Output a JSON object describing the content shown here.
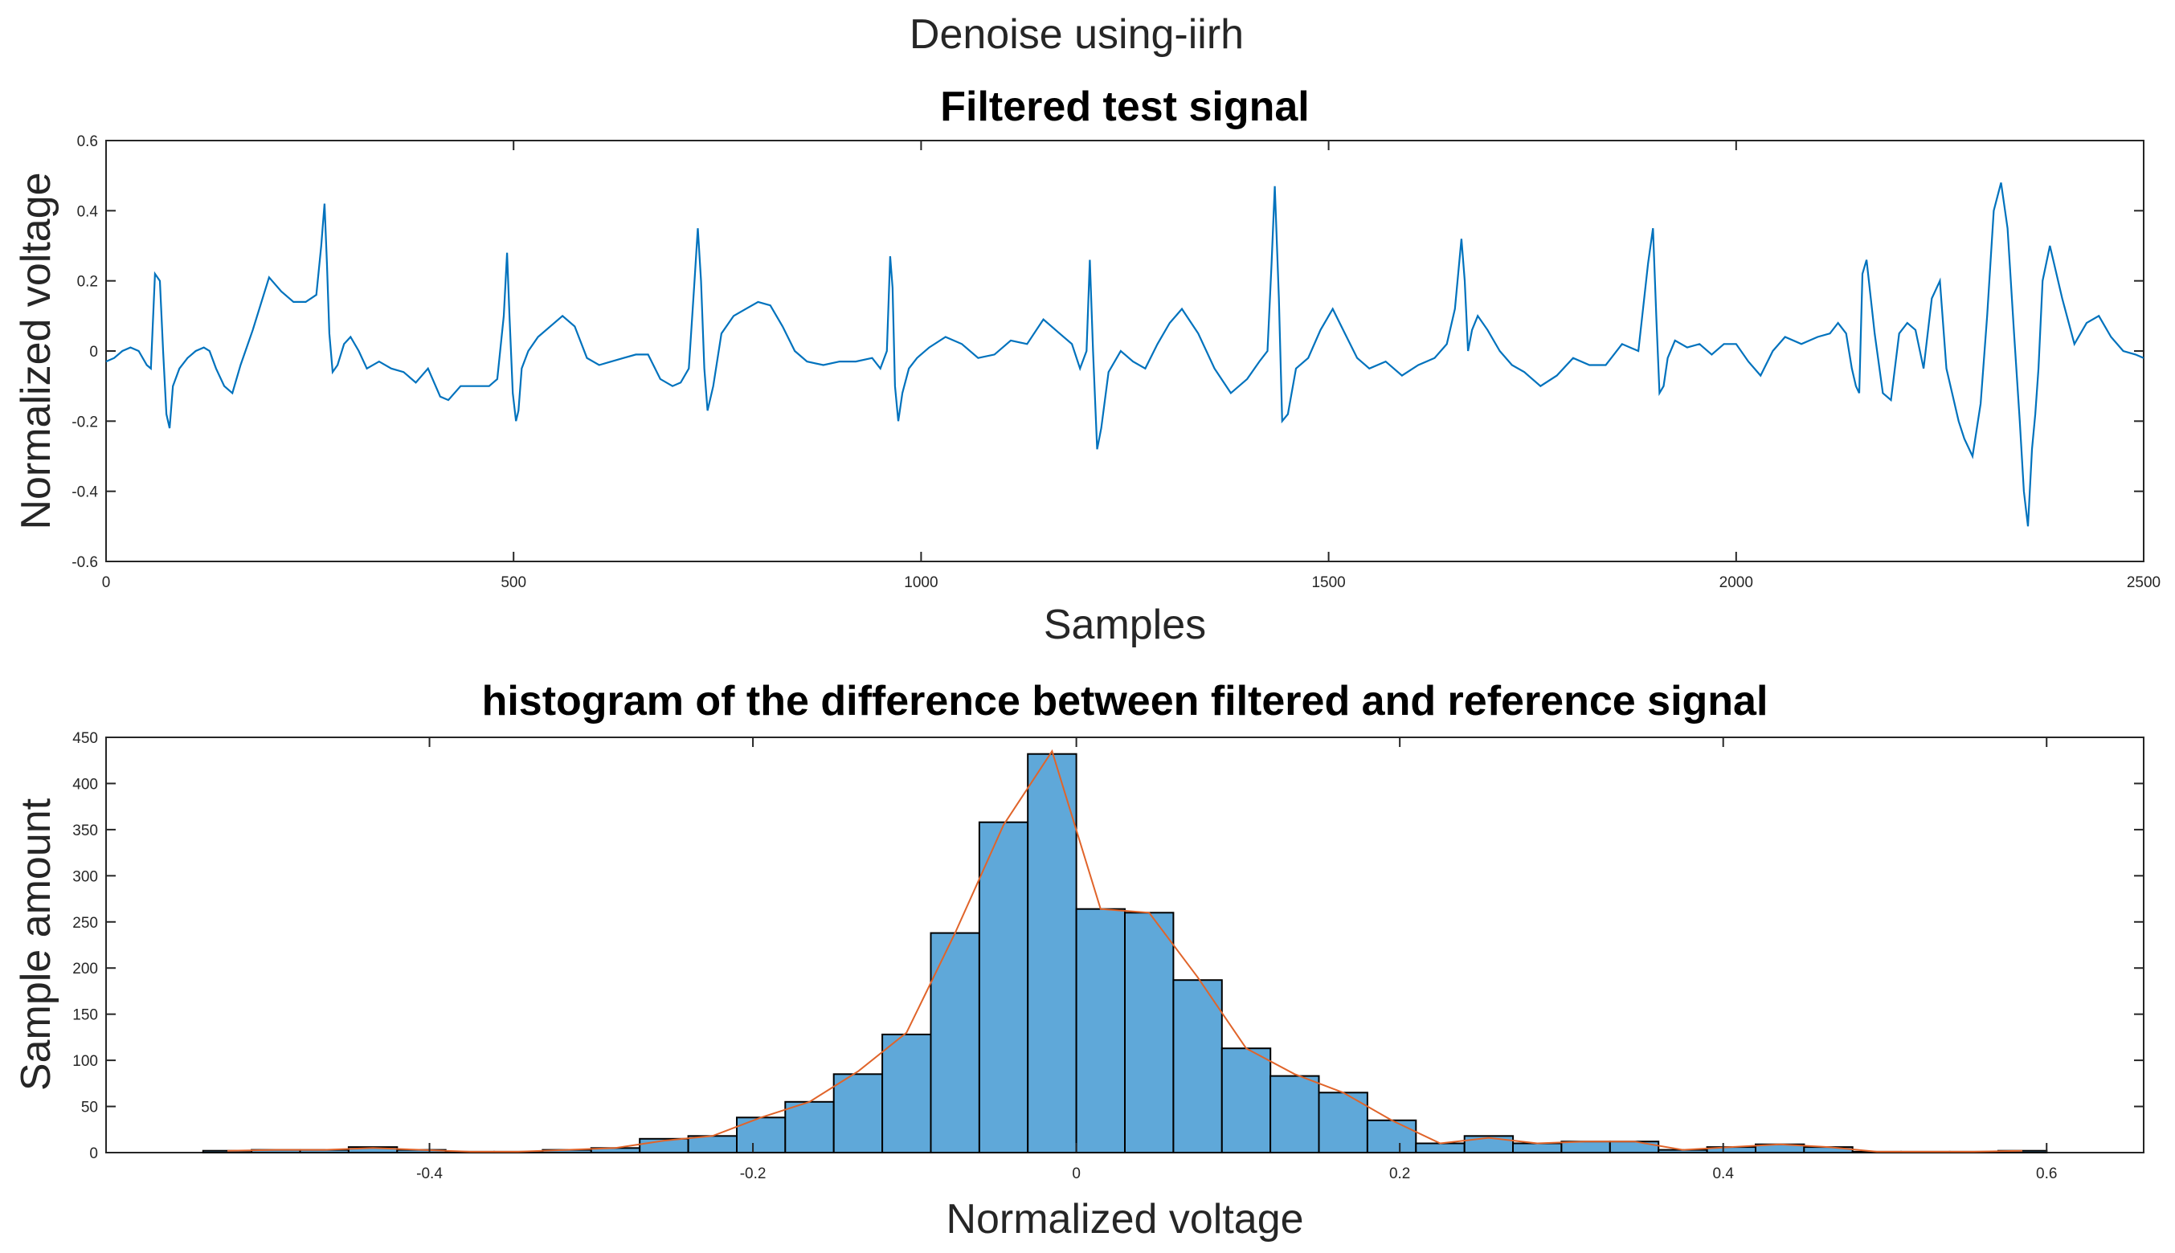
{
  "figure": {
    "suptitle": "Denoise using-iirh"
  },
  "chart_data": [
    {
      "type": "line",
      "title": "Filtered test signal",
      "xlabel": "Samples",
      "ylabel": "Normalized voltage",
      "xlim": [
        0,
        2500
      ],
      "ylim": [
        -0.6,
        0.6
      ],
      "xticks": [
        0,
        500,
        1000,
        1500,
        2000,
        2500
      ],
      "xtick_labels": [
        "0",
        "500",
        "1000",
        "1500",
        "2000",
        "2500"
      ],
      "yticks": [
        -0.6,
        -0.4,
        -0.2,
        0,
        0.2,
        0.4,
        0.6
      ],
      "ytick_labels": [
        "-0.6",
        "-0.4",
        "-0.2",
        "0",
        "0.2",
        "0.4",
        "0.6"
      ],
      "color": "#0072bd",
      "series": [
        {
          "name": "filtered signal",
          "x": [
            0,
            10,
            20,
            30,
            40,
            50,
            55,
            60,
            66,
            70,
            74,
            78,
            82,
            90,
            100,
            110,
            120,
            127,
            135,
            145,
            155,
            165,
            180,
            200,
            215,
            230,
            245,
            258,
            264,
            268,
            271,
            274,
            278,
            284,
            292,
            300,
            310,
            320,
            335,
            350,
            365,
            380,
            395,
            410,
            420,
            435,
            445,
            460,
            470,
            480,
            488,
            492,
            495,
            499,
            503,
            506,
            510,
            518,
            530,
            545,
            560,
            575,
            590,
            605,
            620,
            635,
            650,
            665,
            680,
            695,
            705,
            715,
            722,
            726,
            730,
            734,
            738,
            745,
            755,
            770,
            785,
            800,
            815,
            830,
            845,
            860,
            880,
            900,
            920,
            940,
            950,
            958,
            962,
            965,
            968,
            972,
            977,
            985,
            995,
            1010,
            1030,
            1050,
            1070,
            1090,
            1110,
            1130,
            1150,
            1170,
            1185,
            1195,
            1203,
            1207,
            1211,
            1216,
            1221,
            1230,
            1245,
            1260,
            1275,
            1290,
            1305,
            1320,
            1340,
            1360,
            1380,
            1400,
            1415,
            1425,
            1430,
            1434,
            1439,
            1443,
            1450,
            1460,
            1475,
            1490,
            1505,
            1520,
            1535,
            1550,
            1570,
            1590,
            1610,
            1630,
            1645,
            1655,
            1663,
            1667,
            1671,
            1676,
            1683,
            1695,
            1710,
            1725,
            1740,
            1760,
            1780,
            1800,
            1820,
            1840,
            1860,
            1880,
            1892,
            1898,
            1902,
            1906,
            1911,
            1916,
            1925,
            1940,
            1955,
            1970,
            1985,
            2000,
            2015,
            2030,
            2045,
            2060,
            2080,
            2100,
            2115,
            2125,
            2135,
            2142,
            2147,
            2151,
            2155,
            2160,
            2170,
            2180,
            2190,
            2200,
            2210,
            2220,
            2230,
            2240,
            2250,
            2258,
            2265,
            2273,
            2280,
            2290,
            2300,
            2308,
            2316,
            2325,
            2333,
            2341,
            2348,
            2353,
            2358,
            2363,
            2367,
            2371,
            2376,
            2385,
            2400,
            2415,
            2430,
            2445,
            2460,
            2475,
            2490,
            2500
          ],
          "y": [
            -0.03,
            -0.02,
            0.0,
            0.01,
            0.0,
            -0.04,
            -0.05,
            0.22,
            0.2,
            0.0,
            -0.18,
            -0.22,
            -0.1,
            -0.05,
            -0.02,
            0.0,
            0.01,
            0.0,
            -0.05,
            -0.1,
            -0.12,
            -0.04,
            0.06,
            0.21,
            0.17,
            0.14,
            0.14,
            0.16,
            0.3,
            0.42,
            0.25,
            0.05,
            -0.06,
            -0.04,
            0.02,
            0.04,
            0.0,
            -0.05,
            -0.03,
            -0.05,
            -0.06,
            -0.09,
            -0.05,
            -0.13,
            -0.14,
            -0.1,
            -0.1,
            -0.1,
            -0.1,
            -0.08,
            0.1,
            0.28,
            0.1,
            -0.12,
            -0.2,
            -0.17,
            -0.05,
            0.0,
            0.04,
            0.07,
            0.1,
            0.07,
            -0.02,
            -0.04,
            -0.03,
            -0.02,
            -0.01,
            -0.01,
            -0.08,
            -0.1,
            -0.09,
            -0.05,
            0.2,
            0.35,
            0.2,
            -0.05,
            -0.17,
            -0.1,
            0.05,
            0.1,
            0.12,
            0.14,
            0.13,
            0.07,
            0.0,
            -0.03,
            -0.04,
            -0.03,
            -0.03,
            -0.02,
            -0.05,
            0.0,
            0.27,
            0.18,
            -0.1,
            -0.2,
            -0.12,
            -0.05,
            -0.02,
            0.01,
            0.04,
            0.02,
            -0.02,
            -0.01,
            0.03,
            0.02,
            0.09,
            0.05,
            0.02,
            -0.05,
            0.0,
            0.26,
            0.0,
            -0.28,
            -0.22,
            -0.06,
            0.0,
            -0.03,
            -0.05,
            0.02,
            0.08,
            0.12,
            0.05,
            -0.05,
            -0.12,
            -0.08,
            -0.03,
            0.0,
            0.25,
            0.47,
            0.15,
            -0.2,
            -0.18,
            -0.05,
            -0.02,
            0.06,
            0.12,
            0.05,
            -0.02,
            -0.05,
            -0.03,
            -0.07,
            -0.04,
            -0.02,
            0.02,
            0.12,
            0.32,
            0.2,
            0.0,
            0.06,
            0.1,
            0.06,
            0.0,
            -0.04,
            -0.06,
            -0.1,
            -0.07,
            -0.02,
            -0.04,
            -0.04,
            0.02,
            0.0,
            0.25,
            0.35,
            0.1,
            -0.12,
            -0.1,
            -0.02,
            0.03,
            0.01,
            0.02,
            -0.01,
            0.02,
            0.02,
            -0.03,
            -0.07,
            0.0,
            0.04,
            0.02,
            0.04,
            0.05,
            0.08,
            0.05,
            -0.05,
            -0.1,
            -0.12,
            0.22,
            0.26,
            0.05,
            -0.12,
            -0.14,
            0.05,
            0.08,
            0.06,
            -0.05,
            0.15,
            0.2,
            -0.05,
            -0.12,
            -0.2,
            -0.25,
            -0.3,
            -0.15,
            0.1,
            0.4,
            0.48,
            0.35,
            0.05,
            -0.2,
            -0.4,
            -0.5,
            -0.28,
            -0.18,
            -0.05,
            0.2,
            0.3,
            0.15,
            0.02,
            0.08,
            0.1,
            0.04,
            0.0,
            -0.01,
            -0.02
          ]
        }
      ]
    },
    {
      "type": "bar",
      "title": "histogram of the difference between filtered and reference signal",
      "xlabel": "Normalized voltage",
      "ylabel": "Sample amount",
      "xlim": [
        -0.6,
        0.66
      ],
      "ylim": [
        0,
        450
      ],
      "xticks": [
        -0.4,
        -0.2,
        0,
        0.2,
        0.4,
        0.6
      ],
      "xtick_labels": [
        "-0.4",
        "-0.2",
        "0",
        "0.2",
        "0.4",
        "0.6"
      ],
      "yticks": [
        0,
        50,
        100,
        150,
        200,
        250,
        300,
        350,
        400,
        450
      ],
      "ytick_labels": [
        "0",
        "50",
        "100",
        "150",
        "200",
        "250",
        "300",
        "350",
        "400",
        "450"
      ],
      "bin_width": 0.03,
      "bin_edges_start": -0.54,
      "bar_color": "#5fa8d9",
      "curve_color": "#e0642a",
      "bin_centers": [
        -0.525,
        -0.495,
        -0.465,
        -0.435,
        -0.405,
        -0.375,
        -0.345,
        -0.315,
        -0.285,
        -0.255,
        -0.225,
        -0.195,
        -0.165,
        -0.135,
        -0.105,
        -0.075,
        -0.045,
        -0.015,
        0.015,
        0.045,
        0.075,
        0.105,
        0.135,
        0.165,
        0.195,
        0.225,
        0.255,
        0.285,
        0.315,
        0.345,
        0.375,
        0.405,
        0.435,
        0.465,
        0.495,
        0.525,
        0.555,
        0.585
      ],
      "values": [
        2,
        3,
        3,
        6,
        3,
        1,
        1,
        3,
        5,
        15,
        18,
        38,
        55,
        85,
        128,
        238,
        358,
        432,
        264,
        260,
        187,
        113,
        83,
        65,
        35,
        10,
        18,
        10,
        12,
        12,
        3,
        6,
        9,
        6,
        1,
        1,
        1,
        2
      ],
      "series": [
        {
          "name": "histogram",
          "type": "bar"
        },
        {
          "name": "fitted curve",
          "type": "line",
          "values": [
            2,
            3,
            3,
            5,
            3,
            1,
            1,
            3,
            5,
            13,
            18,
            38,
            55,
            88,
            130,
            238,
            355,
            435,
            264,
            260,
            190,
            113,
            85,
            65,
            35,
            10,
            16,
            10,
            12,
            12,
            3,
            6,
            9,
            6,
            1,
            1,
            1,
            2
          ]
        }
      ]
    }
  ]
}
